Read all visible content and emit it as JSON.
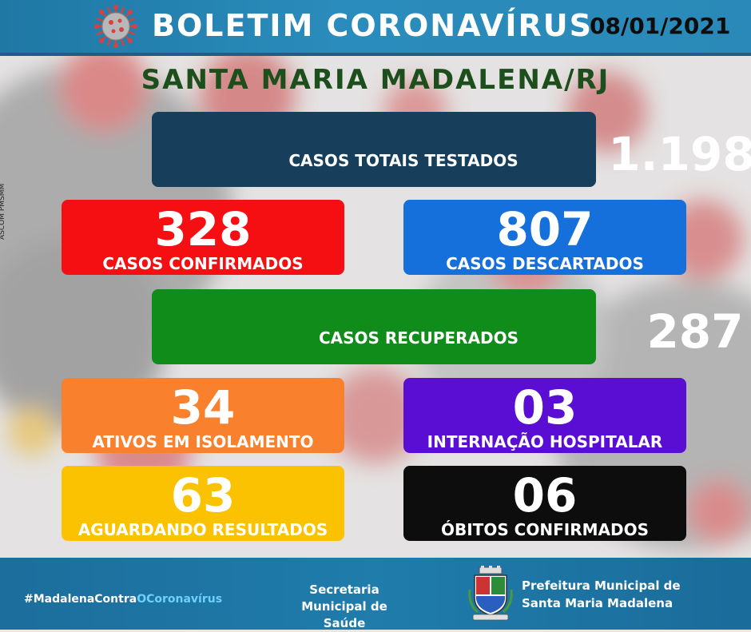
{
  "header": {
    "title": "BOLETIM CORONAVÍRUS",
    "date": "08/01/2021"
  },
  "city": "SANTA MARIA MADALENA/RJ",
  "side_credit": "ASCOM PMSMM",
  "cards": {
    "total": {
      "label": "CASOS TOTAIS TESTADOS",
      "value": "1.198",
      "color": "#173f5c"
    },
    "confirmed": {
      "label": "CASOS CONFIRMADOS",
      "value": "328",
      "color": "#f50f13"
    },
    "discarded": {
      "label": "CASOS DESCARTADOS",
      "value": "807",
      "color": "#1570db"
    },
    "recovered": {
      "label": "CASOS RECUPERADOS",
      "value": "287",
      "color": "#0f8c1a"
    },
    "active": {
      "label": "ATIVOS EM ISOLAMENTO",
      "value": "34",
      "color": "#f9802d"
    },
    "hospital": {
      "label": "INTERNAÇÃO HOSPITALAR",
      "value": "03",
      "color": "#5a0ed4"
    },
    "waiting": {
      "label": "AGUARDANDO RESULTADOS",
      "value": "63",
      "color": "#fbc202"
    },
    "deaths": {
      "label": "ÓBITOS CONFIRMADOS",
      "value": "06",
      "color": "#0d0d0d"
    }
  },
  "footer": {
    "hashtag_a": "#MadalenaContra",
    "hashtag_b": "OCoronavírus",
    "secretaria_1": "Secretaria",
    "secretaria_2": "Municipal de Saúde",
    "prefeitura_1": "Prefeitura Municipal de",
    "prefeitura_2": "Santa Maria Madalena"
  },
  "icons": [
    "coronavirus-icon",
    "municipal-crest-icon"
  ]
}
